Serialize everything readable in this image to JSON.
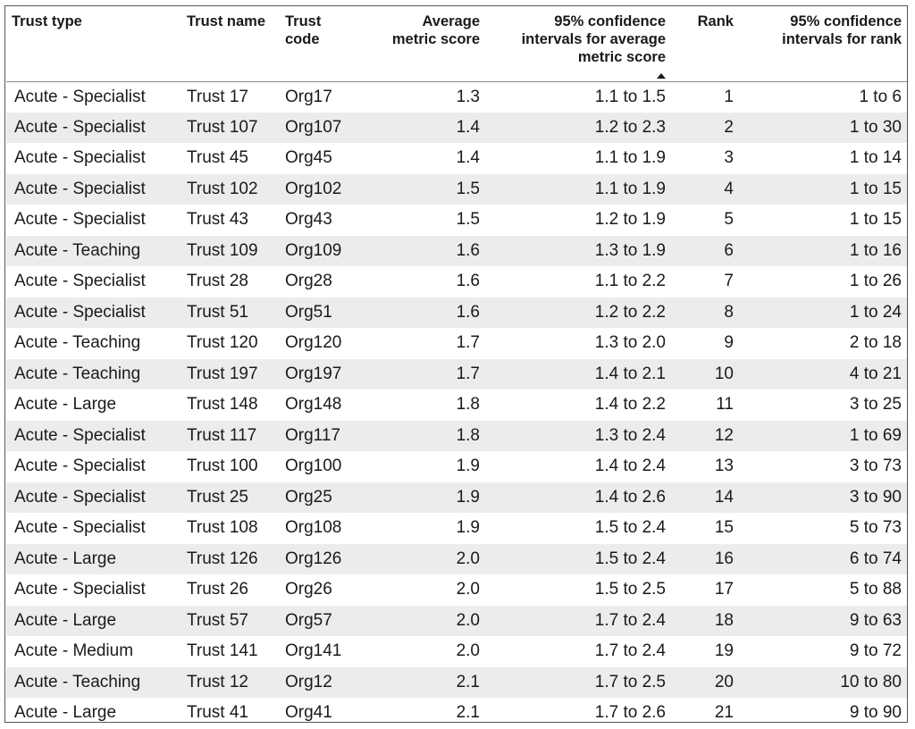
{
  "headers": {
    "trust_type": "Trust type",
    "trust_name": "Trust name",
    "trust_code": "Trust code",
    "avg_score": "Average metric score",
    "ci_score": "95% confidence intervals for average metric score",
    "rank": "Rank",
    "ci_rank": "95% confidence intervals for rank",
    "sort_icon": "sort-ascending-icon"
  },
  "rows": [
    {
      "type": "Acute - Specialist",
      "name": "Trust 17",
      "code": "Org17",
      "score": "1.3",
      "ci": "1.1 to 1.5",
      "rank": "1",
      "rank_ci": "1 to 6"
    },
    {
      "type": "Acute - Specialist",
      "name": "Trust 107",
      "code": "Org107",
      "score": "1.4",
      "ci": "1.2 to 2.3",
      "rank": "2",
      "rank_ci": "1 to 30"
    },
    {
      "type": "Acute - Specialist",
      "name": "Trust 45",
      "code": "Org45",
      "score": "1.4",
      "ci": "1.1 to 1.9",
      "rank": "3",
      "rank_ci": "1 to 14"
    },
    {
      "type": "Acute - Specialist",
      "name": "Trust 102",
      "code": "Org102",
      "score": "1.5",
      "ci": "1.1 to 1.9",
      "rank": "4",
      "rank_ci": "1 to 15"
    },
    {
      "type": "Acute - Specialist",
      "name": "Trust 43",
      "code": "Org43",
      "score": "1.5",
      "ci": "1.2 to 1.9",
      "rank": "5",
      "rank_ci": "1 to 15"
    },
    {
      "type": "Acute - Teaching",
      "name": "Trust 109",
      "code": "Org109",
      "score": "1.6",
      "ci": "1.3 to 1.9",
      "rank": "6",
      "rank_ci": "1 to 16"
    },
    {
      "type": "Acute - Specialist",
      "name": "Trust 28",
      "code": "Org28",
      "score": "1.6",
      "ci": "1.1 to 2.2",
      "rank": "7",
      "rank_ci": "1 to 26"
    },
    {
      "type": "Acute - Specialist",
      "name": "Trust 51",
      "code": "Org51",
      "score": "1.6",
      "ci": "1.2 to 2.2",
      "rank": "8",
      "rank_ci": "1 to 24"
    },
    {
      "type": "Acute - Teaching",
      "name": "Trust 120",
      "code": "Org120",
      "score": "1.7",
      "ci": "1.3 to 2.0",
      "rank": "9",
      "rank_ci": "2 to 18"
    },
    {
      "type": "Acute - Teaching",
      "name": "Trust 197",
      "code": "Org197",
      "score": "1.7",
      "ci": "1.4 to 2.1",
      "rank": "10",
      "rank_ci": "4 to 21"
    },
    {
      "type": "Acute - Large",
      "name": "Trust 148",
      "code": "Org148",
      "score": "1.8",
      "ci": "1.4 to 2.2",
      "rank": "11",
      "rank_ci": "3 to 25"
    },
    {
      "type": "Acute - Specialist",
      "name": "Trust 117",
      "code": "Org117",
      "score": "1.8",
      "ci": "1.3 to 2.4",
      "rank": "12",
      "rank_ci": "1 to 69"
    },
    {
      "type": "Acute - Specialist",
      "name": "Trust 100",
      "code": "Org100",
      "score": "1.9",
      "ci": "1.4 to 2.4",
      "rank": "13",
      "rank_ci": "3 to 73"
    },
    {
      "type": "Acute - Specialist",
      "name": "Trust 25",
      "code": "Org25",
      "score": "1.9",
      "ci": "1.4 to 2.6",
      "rank": "14",
      "rank_ci": "3 to 90"
    },
    {
      "type": "Acute - Specialist",
      "name": "Trust 108",
      "code": "Org108",
      "score": "1.9",
      "ci": "1.5 to 2.4",
      "rank": "15",
      "rank_ci": "5 to 73"
    },
    {
      "type": "Acute - Large",
      "name": "Trust 126",
      "code": "Org126",
      "score": "2.0",
      "ci": "1.5 to 2.4",
      "rank": "16",
      "rank_ci": "6 to 74"
    },
    {
      "type": "Acute - Specialist",
      "name": "Trust 26",
      "code": "Org26",
      "score": "2.0",
      "ci": "1.5 to 2.5",
      "rank": "17",
      "rank_ci": "5 to 88"
    },
    {
      "type": "Acute - Large",
      "name": "Trust 57",
      "code": "Org57",
      "score": "2.0",
      "ci": "1.7 to 2.4",
      "rank": "18",
      "rank_ci": "9 to 63"
    },
    {
      "type": "Acute - Medium",
      "name": "Trust 141",
      "code": "Org141",
      "score": "2.0",
      "ci": "1.7 to 2.4",
      "rank": "19",
      "rank_ci": "9 to 72"
    },
    {
      "type": "Acute - Teaching",
      "name": "Trust 12",
      "code": "Org12",
      "score": "2.1",
      "ci": "1.7 to 2.5",
      "rank": "20",
      "rank_ci": "10 to 80"
    },
    {
      "type": "Acute - Large",
      "name": "Trust 41",
      "code": "Org41",
      "score": "2.1",
      "ci": "1.7 to 2.6",
      "rank": "21",
      "rank_ci": "9 to 90"
    }
  ],
  "colors": {
    "border": "#555555",
    "stripe": "#ececec",
    "header_rule": "#8a8a8a"
  }
}
